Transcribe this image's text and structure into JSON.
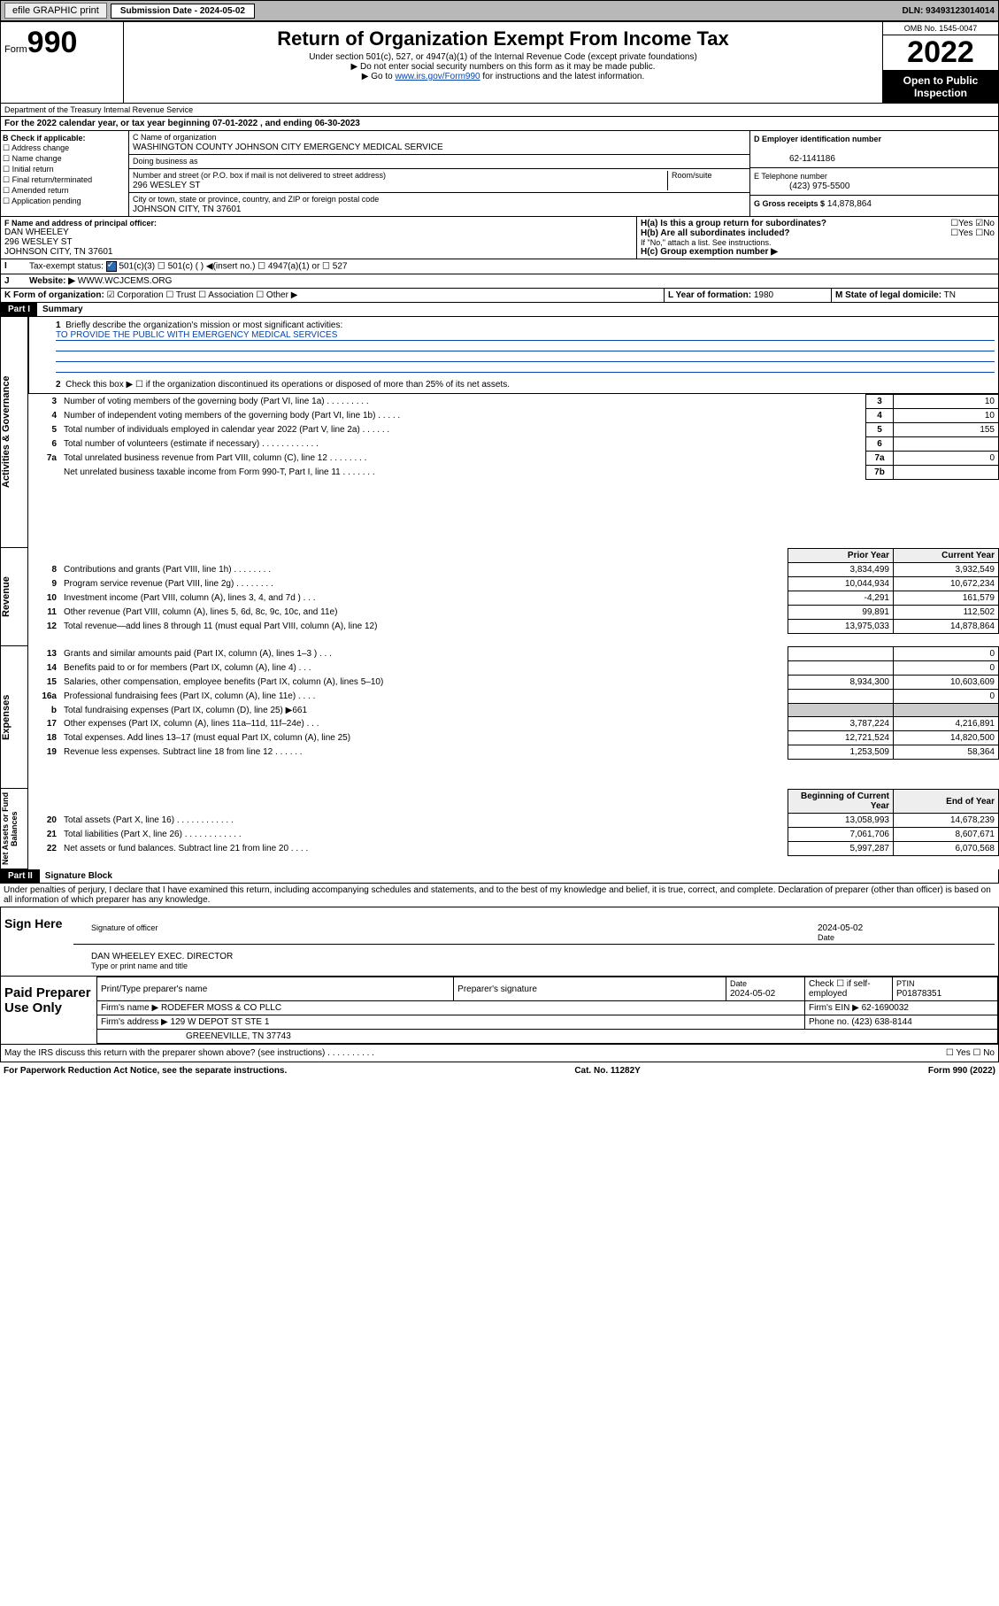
{
  "topbar": {
    "efile": "efile GRAPHIC print",
    "subLabel": "Submission Date - 2024-05-02",
    "dln": "DLN: 93493123014014"
  },
  "header": {
    "formWord": "Form",
    "formNum": "990",
    "title": "Return of Organization Exempt From Income Tax",
    "sub1": "Under section 501(c), 527, or 4947(a)(1) of the Internal Revenue Code (except private foundations)",
    "sub2": "▶ Do not enter social security numbers on this form as it may be made public.",
    "sub3": "▶ Go to www.irs.gov/Form990 for instructions and the latest information.",
    "omb": "OMB No. 1545-0047",
    "year": "2022",
    "open": "Open to Public Inspection",
    "dept": "Department of the Treasury Internal Revenue Service"
  },
  "A": {
    "text": "For the 2022 calendar year, or tax year beginning 07-01-2022    , and ending 06-30-2023"
  },
  "B": {
    "hdr": "B Check if applicable:",
    "items": [
      "☐ Address change",
      "☐ Name change",
      "☐ Initial return",
      "☐ Final return/terminated",
      "☐ Amended return",
      "☐ Application pending"
    ]
  },
  "C": {
    "nameLbl": "C Name of organization",
    "name": "WASHINGTON COUNTY JOHNSON CITY EMERGENCY MEDICAL SERVICE",
    "dba": "Doing business as",
    "addrLbl": "Number and street (or P.O. box if mail is not delivered to street address)",
    "addr": "296 WESLEY ST",
    "roomLbl": "Room/suite",
    "cityLbl": "City or town, state or province, country, and ZIP or foreign postal code",
    "city": "JOHNSON CITY, TN  37601"
  },
  "D": {
    "lbl": "D Employer identification number",
    "val": "62-1141186"
  },
  "E": {
    "lbl": "E Telephone number",
    "val": "(423) 975-5500"
  },
  "G": {
    "lbl": "G Gross receipts $",
    "val": "14,878,864"
  },
  "F": {
    "lbl": "F  Name and address of principal officer:",
    "name": "DAN WHEELEY",
    "addr": "296 WESLEY ST",
    "city": "JOHNSON CITY, TN  37601"
  },
  "H": {
    "a": "H(a)  Is this a group return for subordinates?",
    "aAns": "☐Yes ☑No",
    "b": "H(b)  Are all subordinates included?",
    "bAns": "☐Yes ☐No",
    "bNote": "If \"No,\" attach a list. See instructions.",
    "c": "H(c)  Group exemption number ▶"
  },
  "I": {
    "lbl": "Tax-exempt status:",
    "opts": "501(c)(3)    ☐  501(c) (  ) ◀(insert no.)    ☐ 4947(a)(1) or  ☐ 527"
  },
  "J": {
    "lbl": "Website: ▶",
    "val": "WWW.WCJCEMS.ORG"
  },
  "K": {
    "lbl": "K Form of organization:",
    "val": "☑ Corporation ☐ Trust ☐ Association ☐ Other ▶"
  },
  "L": {
    "lbl": "L Year of formation:",
    "val": "1980"
  },
  "M": {
    "lbl": "M State of legal domicile:",
    "val": "TN"
  },
  "part1": {
    "hdr": "Part I",
    "title": "Summary"
  },
  "summary": {
    "l1": "Briefly describe the organization's mission or most significant activities:",
    "l1v": "TO PROVIDE THE PUBLIC WITH EMERGENCY MEDICAL SERVICES",
    "l2": "Check this box ▶ ☐  if the organization discontinued its operations or disposed of more than 25% of its net assets.",
    "rows": [
      {
        "n": "3",
        "d": "Number of voting members of the governing body (Part VI, line 1a)   .    .    .    .    .    .    .    .    .",
        "ln": "3",
        "v": "10"
      },
      {
        "n": "4",
        "d": "Number of independent voting members of the governing body (Part VI, line 1b)  .    .    .    .    .",
        "ln": "4",
        "v": "10"
      },
      {
        "n": "5",
        "d": "Total number of individuals employed in calendar year 2022 (Part V, line 2a)  .    .    .    .    .    .",
        "ln": "5",
        "v": "155"
      },
      {
        "n": "6",
        "d": "Total number of volunteers (estimate if necessary)  .    .    .    .    .    .    .    .    .    .    .    .",
        "ln": "6",
        "v": ""
      },
      {
        "n": "7a",
        "d": "Total unrelated business revenue from Part VIII, column (C), line 12  .    .    .    .    .    .    .    .",
        "ln": "7a",
        "v": "0"
      },
      {
        "n": "",
        "d": "Net unrelated business taxable income from Form 990-T, Part I, line 11  .    .    .    .    .    .    .",
        "ln": "7b",
        "v": ""
      }
    ],
    "colHdr": {
      "prior": "Prior Year",
      "curr": "Current Year"
    },
    "rev": [
      {
        "n": "8",
        "d": "Contributions and grants (Part VIII, line 1h)   .    .    .    .    .    .    .    .",
        "p": "3,834,499",
        "c": "3,932,549"
      },
      {
        "n": "9",
        "d": "Program service revenue (Part VIII, line 2g)   .    .    .    .    .    .    .    .",
        "p": "10,044,934",
        "c": "10,672,234"
      },
      {
        "n": "10",
        "d": "Investment income (Part VIII, column (A), lines 3, 4, and 7d )   .    .    .",
        "p": "-4,291",
        "c": "161,579"
      },
      {
        "n": "11",
        "d": "Other revenue (Part VIII, column (A), lines 5, 6d, 8c, 9c, 10c, and 11e)",
        "p": "99,891",
        "c": "112,502"
      },
      {
        "n": "12",
        "d": "Total revenue—add lines 8 through 11 (must equal Part VIII, column (A), line 12)",
        "p": "13,975,033",
        "c": "14,878,864"
      }
    ],
    "exp": [
      {
        "n": "13",
        "d": "Grants and similar amounts paid (Part IX, column (A), lines 1–3 )   .    .    .",
        "p": "",
        "c": "0"
      },
      {
        "n": "14",
        "d": "Benefits paid to or for members (Part IX, column (A), line 4)   .    .    .",
        "p": "",
        "c": "0"
      },
      {
        "n": "15",
        "d": "Salaries, other compensation, employee benefits (Part IX, column (A), lines 5–10)",
        "p": "8,934,300",
        "c": "10,603,609"
      },
      {
        "n": "16a",
        "d": "Professional fundraising fees (Part IX, column (A), line 11e)   .    .    .    .",
        "p": "",
        "c": "0"
      },
      {
        "n": "b",
        "d": "Total fundraising expenses (Part IX, column (D), line 25) ▶661",
        "p": "shade",
        "c": "shade"
      },
      {
        "n": "17",
        "d": "Other expenses (Part IX, column (A), lines 11a–11d, 11f–24e)   .    .    .",
        "p": "3,787,224",
        "c": "4,216,891"
      },
      {
        "n": "18",
        "d": "Total expenses. Add lines 13–17 (must equal Part IX, column (A), line 25)",
        "p": "12,721,524",
        "c": "14,820,500"
      },
      {
        "n": "19",
        "d": "Revenue less expenses. Subtract line 18 from line 12   .    .    .    .    .    .",
        "p": "1,253,509",
        "c": "58,364"
      }
    ],
    "balHdr": {
      "b": "Beginning of Current Year",
      "e": "End of Year"
    },
    "bal": [
      {
        "n": "20",
        "d": "Total assets (Part X, line 16)   .    .    .    .    .    .    .    .    .    .    .    .",
        "p": "13,058,993",
        "c": "14,678,239"
      },
      {
        "n": "21",
        "d": "Total liabilities (Part X, line 26)  .    .    .    .    .    .    .    .    .    .    .    .",
        "p": "7,061,706",
        "c": "8,607,671"
      },
      {
        "n": "22",
        "d": "Net assets or fund balances. Subtract line 21 from line 20   .    .    .    .",
        "p": "5,997,287",
        "c": "6,070,568"
      }
    ]
  },
  "sideLabels": {
    "act": "Activities & Governance",
    "rev": "Revenue",
    "exp": "Expenses",
    "net": "Net Assets or Fund Balances"
  },
  "part2": {
    "hdr": "Part II",
    "title": "Signature Block",
    "decl": "Under penalties of perjury, I declare that I have examined this return, including accompanying schedules and statements, and to the best of my knowledge and belief, it is true, correct, and complete. Declaration of preparer (other than officer) is based on all information of which preparer has any knowledge."
  },
  "sign": {
    "here": "Sign Here",
    "sigOf": "Signature of officer",
    "date": "Date",
    "dateV": "2024-05-02",
    "name": "DAN WHEELEY EXEC. DIRECTOR",
    "nameLbl": "Type or print name and title"
  },
  "paid": {
    "hdr": "Paid Preparer Use Only",
    "r1": {
      "a": "Print/Type preparer's name",
      "b": "Preparer's signature",
      "c": "Date",
      "cv": "2024-05-02",
      "d": "Check ☐ if self-employed",
      "e": "PTIN",
      "ev": "P01878351"
    },
    "r2": {
      "a": "Firm's name      ▶",
      "av": "RODEFER MOSS & CO PLLC",
      "b": "Firm's EIN ▶",
      "bv": "62-1690032"
    },
    "r3": {
      "a": "Firm's address ▶",
      "av": "129 W DEPOT ST STE 1",
      "b": "Phone no.",
      "bv": "(423) 638-8144"
    },
    "r4": {
      "av": "GREENEVILLE, TN  37743"
    }
  },
  "bottom": {
    "q": "May the IRS discuss this return with the preparer shown above? (see instructions)   .    .    .    .    .    .    .    .    .    .",
    "a": "☐ Yes  ☐ No"
  },
  "footer": {
    "l": "For Paperwork Reduction Act Notice, see the separate instructions.",
    "m": "Cat. No. 11282Y",
    "r": "Form 990 (2022)"
  }
}
